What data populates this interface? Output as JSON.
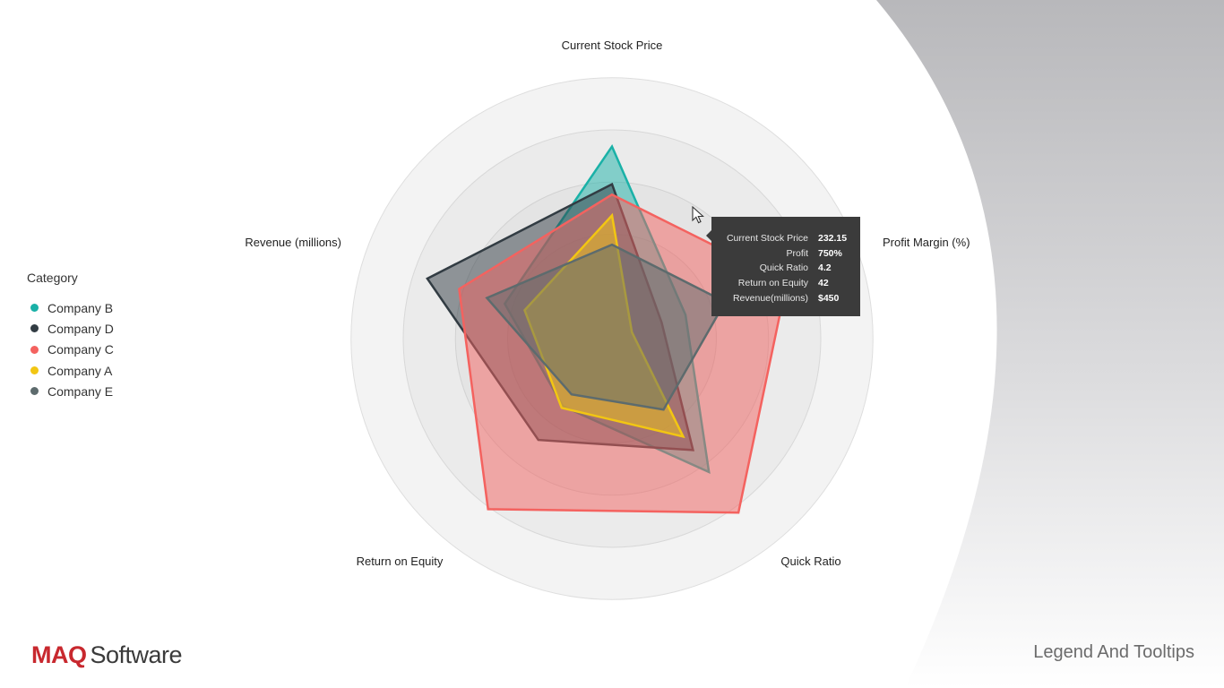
{
  "chart_data": {
    "type": "radar",
    "axes": [
      "Current Stock Price",
      "Profit Margin (%)",
      "Quick Ratio",
      "Return on Equity",
      "Revenue (millions)"
    ],
    "rlim": [
      0,
      1
    ],
    "rings": [
      0.25,
      0.5,
      0.75,
      1.0
    ],
    "grid": true,
    "legend_placement": "left",
    "series": [
      {
        "name": "Company B",
        "color": "#1ab1a7",
        "values": [
          0.92,
          0.37,
          0.79,
          0.4,
          0.54
        ]
      },
      {
        "name": "Company D",
        "color": "#323c43",
        "values": [
          0.74,
          0.25,
          0.66,
          0.6,
          0.93
        ]
      },
      {
        "name": "Company C",
        "color": "#f4625f",
        "values": [
          0.69,
          0.88,
          1.03,
          1.01,
          0.77
        ]
      },
      {
        "name": "Company A",
        "color": "#f2c613",
        "values": [
          0.59,
          0.1,
          0.58,
          0.41,
          0.44
        ]
      },
      {
        "name": "Company E",
        "color": "#5d6b6d",
        "values": [
          0.45,
          0.57,
          0.42,
          0.33,
          0.63
        ]
      }
    ]
  },
  "legend": {
    "title": "Category",
    "items": [
      {
        "label": "Company B",
        "color": "#1ab1a7"
      },
      {
        "label": "Company D",
        "color": "#323c43"
      },
      {
        "label": "Company C",
        "color": "#f4625f"
      },
      {
        "label": "Company A",
        "color": "#f2c613"
      },
      {
        "label": "Company E",
        "color": "#5d6b6d"
      }
    ]
  },
  "tooltip": {
    "rows": [
      {
        "key": "Current Stock Price",
        "value": "232.15"
      },
      {
        "key": "Profit",
        "value": "750%"
      },
      {
        "key": "Quick Ratio",
        "value": "4.2"
      },
      {
        "key": "Return on Equity",
        "value": "42"
      },
      {
        "key": "Revenue(millions)",
        "value": "$450"
      }
    ]
  },
  "footer": {
    "brand_maq": "MAQ",
    "brand_software": "Software",
    "slide_title": "Legend And Tooltips"
  },
  "icons": {
    "cursor": "mouse-pointer-icon"
  }
}
